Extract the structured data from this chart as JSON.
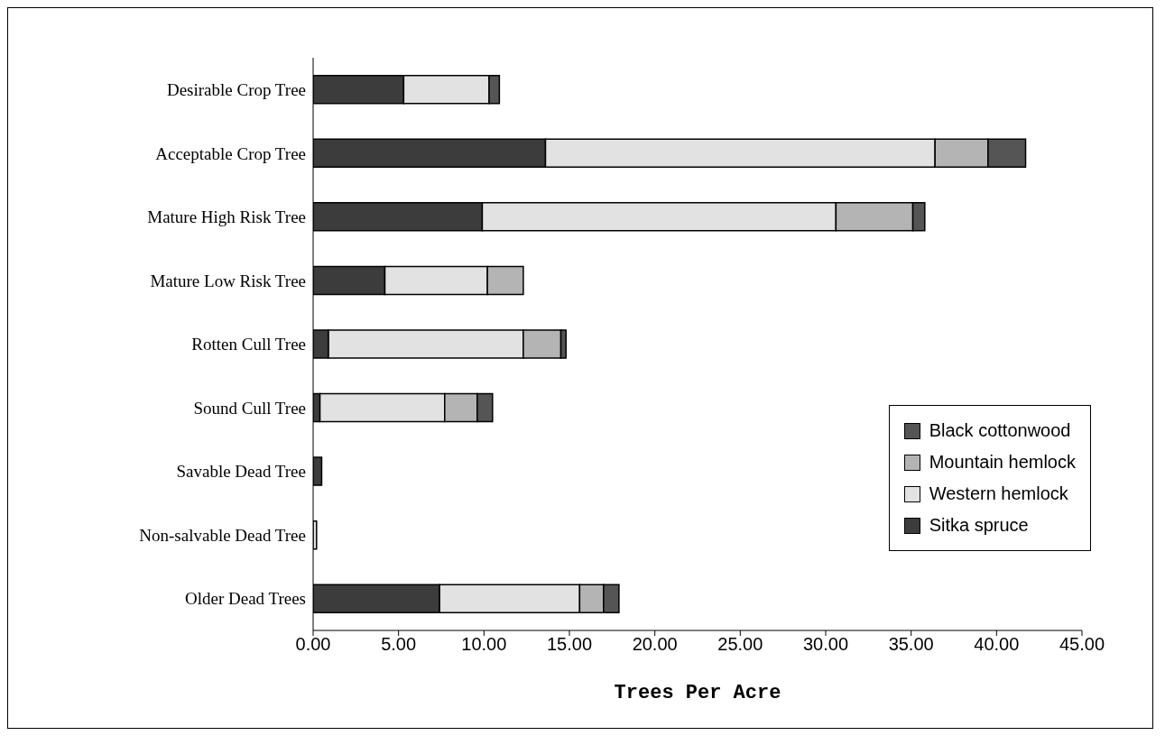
{
  "chart_data": {
    "type": "bar",
    "orientation": "horizontal",
    "stacked": true,
    "xlabel": "Trees Per Acre",
    "categories": [
      "Desirable Crop Tree",
      "Acceptable Crop Tree",
      "Mature High Risk Tree",
      "Mature Low Risk Tree",
      "Rotten Cull Tree",
      "Sound Cull Tree",
      "Savable Dead Tree",
      "Non-salvable Dead Tree",
      "Older Dead Trees"
    ],
    "series": [
      {
        "name": "Sitka spruce",
        "color": "#3c3c3c",
        "values": [
          5.3,
          13.6,
          9.9,
          4.2,
          0.9,
          0.4,
          0.5,
          0,
          7.4
        ]
      },
      {
        "name": "Western hemlock",
        "color": "#e2e2e2",
        "values": [
          5.0,
          22.8,
          20.7,
          6.0,
          11.4,
          7.3,
          0,
          0.2,
          8.2
        ]
      },
      {
        "name": "Mountain hemlock",
        "color": "#b4b4b4",
        "values": [
          0,
          3.1,
          4.5,
          2.1,
          2.2,
          1.9,
          0,
          0,
          1.4
        ]
      },
      {
        "name": "Black cottonwood",
        "color": "#555555",
        "values": [
          0.6,
          2.2,
          0.7,
          0,
          0.3,
          0.9,
          0,
          0,
          0.9
        ]
      }
    ],
    "xlim": [
      0,
      45
    ],
    "xticks": [
      {
        "value": 0,
        "label": "0.00"
      },
      {
        "value": 5,
        "label": "5.00"
      },
      {
        "value": 10,
        "label": "10.00"
      },
      {
        "value": 15,
        "label": "15.00"
      },
      {
        "value": 20,
        "label": "20.00"
      },
      {
        "value": 25,
        "label": "25.00"
      },
      {
        "value": 30,
        "label": "30.00"
      },
      {
        "value": 35,
        "label": "35.00"
      },
      {
        "value": 40,
        "label": "40.00"
      },
      {
        "value": 45,
        "label": "45.00"
      }
    ],
    "legend": "right"
  }
}
